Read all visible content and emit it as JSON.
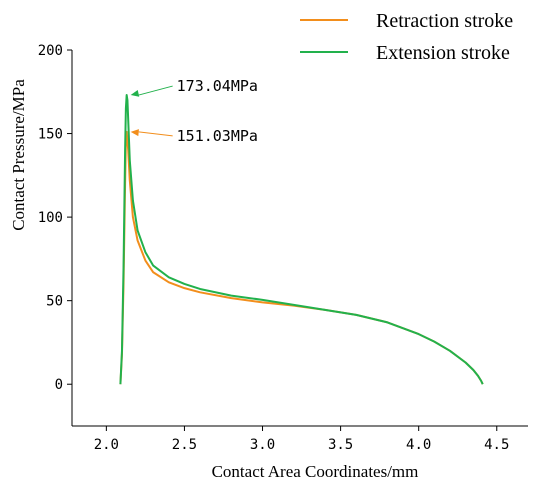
{
  "chart_data": {
    "type": "line",
    "title": "",
    "xlabel": "Contact Area Coordinates/mm",
    "ylabel": "Contact Pressure/MPa",
    "xlim": [
      1.78,
      4.7
    ],
    "ylim": [
      -25,
      200
    ],
    "xticks": [
      "2.0",
      "2.5",
      "3.0",
      "3.5",
      "4.0",
      "4.5"
    ],
    "yticks": [
      "0",
      "50",
      "100",
      "150",
      "200"
    ],
    "grid": false,
    "legend_position": "top-right",
    "series": [
      {
        "name": "Retraction stroke",
        "color": "#f28e1c",
        "x": [
          2.09,
          2.1,
          2.11,
          2.12,
          2.125,
          2.13,
          2.14,
          2.15,
          2.17,
          2.2,
          2.25,
          2.3,
          2.4,
          2.5,
          2.6,
          2.8,
          3.0,
          3.2,
          3.4,
          3.6,
          3.8,
          4.0,
          4.1,
          4.2,
          4.3,
          4.35,
          4.38,
          4.4,
          4.41
        ],
        "y": [
          0,
          18,
          60,
          120,
          145,
          151.03,
          140,
          122,
          100,
          86,
          74,
          67,
          61,
          57.5,
          55,
          51.5,
          49,
          47,
          44.5,
          41.5,
          37,
          30,
          25.5,
          20,
          13,
          8.5,
          5,
          2,
          0
        ]
      },
      {
        "name": "Extension stroke",
        "color": "#22b14c",
        "x": [
          2.09,
          2.1,
          2.11,
          2.12,
          2.125,
          2.13,
          2.135,
          2.14,
          2.15,
          2.17,
          2.2,
          2.25,
          2.3,
          2.4,
          2.5,
          2.6,
          2.8,
          3.0,
          3.2,
          3.4,
          3.6,
          3.8,
          4.0,
          4.1,
          4.2,
          4.3,
          4.35,
          4.38,
          4.4,
          4.41
        ],
        "y": [
          0,
          20,
          70,
          140,
          165,
          173.04,
          170,
          158,
          134,
          110,
          92,
          79,
          71,
          64,
          60,
          57,
          53,
          50.5,
          47.5,
          44.5,
          41.5,
          37,
          30,
          25.5,
          20,
          13,
          8.5,
          5,
          2,
          0
        ]
      }
    ],
    "annotations": [
      {
        "text": "173.04MPa",
        "series": 1,
        "x": 2.13,
        "y": 173.04,
        "color": "#22b14c"
      },
      {
        "text": "151.03MPa",
        "series": 0,
        "x": 2.13,
        "y": 151.03,
        "color": "#f28e1c"
      }
    ]
  }
}
